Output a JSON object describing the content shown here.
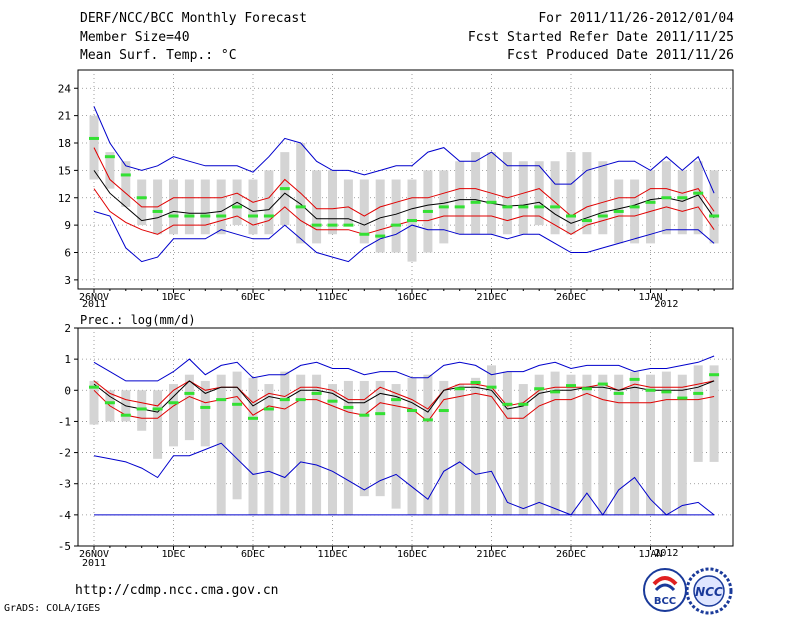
{
  "header": {
    "title": "DERF/NCC/BCC Monthly Forecast",
    "member_size": "Member Size=40",
    "variable": "Mean Surf. Temp.: °C",
    "period": "For 2011/11/26-2012/01/04",
    "started": "Fcst Started Refer Date 2011/11/25",
    "produced": "Fcst Produced Date 2011/11/26"
  },
  "footer": {
    "url": "http://cdmp.ncc.cma.gov.cn",
    "grads": "GrADS: COLA/IGES",
    "logo_bcc": "BCC",
    "logo_ncc": "NCC"
  },
  "colors": {
    "box": "#d4d4d4",
    "median": "#33e033",
    "mean": "#000000",
    "inner": "#e00000",
    "outer": "#0000cc",
    "grid": "#888888"
  },
  "chart_data": [
    {
      "type": "box",
      "title": "Mean Surf. Temp.: °C",
      "ylim": [
        2,
        26
      ],
      "yticks": [
        "3",
        "6",
        "9",
        "12",
        "15",
        "18",
        "21",
        "24"
      ],
      "xticks": [
        "26NOV",
        "1DEC",
        "6DEC",
        "11DEC",
        "16DEC",
        "21DEC",
        "26DEC",
        "1JAN"
      ],
      "year_labels": [
        "2011",
        "2012"
      ],
      "n_days": 40,
      "box_low": [
        14,
        13,
        11,
        9,
        8,
        8,
        8,
        8,
        8,
        9,
        8,
        8,
        9,
        7,
        7,
        8,
        9,
        7,
        6,
        6,
        5,
        6,
        7,
        8,
        8,
        8,
        8,
        8,
        9,
        8,
        8,
        8,
        8,
        7,
        7,
        7,
        8,
        8,
        8,
        7
      ],
      "box_high": [
        21,
        17,
        16,
        14,
        14,
        14,
        14,
        14,
        14,
        14,
        14,
        15,
        17,
        18,
        15,
        15,
        14,
        14,
        14,
        14,
        14,
        15,
        15,
        16,
        17,
        17,
        17,
        16,
        16,
        16,
        17,
        17,
        16,
        14,
        14,
        15,
        16,
        15,
        16,
        15
      ],
      "median": [
        18.5,
        16.5,
        14.5,
        12,
        10.5,
        10,
        10,
        10,
        10,
        11,
        10,
        10,
        13,
        11,
        9,
        9,
        9,
        8,
        7.8,
        9,
        9.5,
        10.5,
        11,
        11,
        11.5,
        11.5,
        11,
        11,
        11,
        11,
        10,
        9.5,
        10,
        10.5,
        11,
        11.5,
        12,
        12,
        12.5,
        10
      ],
      "mean": [
        15,
        12.5,
        11,
        9.5,
        9.8,
        10.5,
        10.3,
        10.3,
        10.5,
        11.5,
        10.5,
        10.7,
        12.5,
        11.3,
        9.7,
        9.7,
        9.7,
        9,
        9.8,
        10.2,
        10.8,
        11.2,
        11.4,
        11.8,
        11.8,
        11.4,
        11.1,
        11.2,
        11.5,
        10.2,
        9.2,
        9.8,
        10.4,
        10.8,
        11.2,
        11.8,
        12,
        11.6,
        12.3,
        9.8
      ],
      "inner_low": [
        13,
        10.5,
        9.3,
        8.5,
        8,
        9,
        9,
        9,
        9.5,
        10,
        9,
        9.5,
        11,
        9.5,
        8.5,
        8.5,
        8.5,
        8,
        8.5,
        9,
        9.5,
        9.5,
        10,
        10,
        10,
        10,
        9.5,
        10,
        10,
        9,
        8,
        9,
        9.5,
        10,
        10,
        10.5,
        11,
        10.5,
        11,
        8.5
      ],
      "inner_high": [
        17.5,
        14,
        12.5,
        11,
        11,
        12,
        12,
        12,
        12,
        12.5,
        11.5,
        12,
        14,
        12.5,
        10.8,
        10.8,
        11,
        10,
        11,
        11.5,
        12,
        12,
        12.5,
        13,
        13,
        12.5,
        12,
        12.5,
        13,
        11.5,
        10,
        11,
        11.5,
        12,
        12,
        13,
        13,
        12.5,
        13,
        10.5
      ],
      "outer_low": [
        10.5,
        10,
        6.5,
        5,
        5.5,
        7.5,
        7.5,
        7.5,
        8.5,
        8,
        7.5,
        7.5,
        9,
        7.5,
        6,
        5.5,
        5,
        6.5,
        7.5,
        8,
        9,
        8.5,
        8.5,
        8,
        8,
        8,
        7.5,
        8,
        8,
        7,
        6,
        6,
        6.5,
        7,
        7.5,
        8,
        8.5,
        8.5,
        8.5,
        7
      ],
      "outer_high": [
        22,
        18,
        15.5,
        15,
        15.5,
        16.5,
        16,
        15.5,
        15.5,
        15.5,
        14.8,
        16.5,
        18.5,
        18,
        16,
        15,
        15,
        14.5,
        15,
        15.5,
        15.5,
        17,
        17.5,
        16,
        16,
        17,
        15.5,
        15.5,
        15.5,
        13.5,
        13.5,
        15,
        15.5,
        16,
        16,
        15,
        16.5,
        15,
        16.5,
        12.5
      ]
    },
    {
      "type": "box",
      "title": "Prec.: log(mm/d)",
      "ylim": [
        -5,
        2
      ],
      "yticks": [
        "-5",
        "-4",
        "-3",
        "-2",
        "-1",
        "0",
        "1",
        "2"
      ],
      "xticks": [
        "26NOV",
        "1DEC",
        "6DEC",
        "11DEC",
        "16DEC",
        "21DEC",
        "26DEC",
        "1JAN"
      ],
      "year_labels": [
        "2011",
        "2012"
      ],
      "n_days": 40,
      "box_low": [
        -1.1,
        -1,
        -1,
        -1.3,
        -2.2,
        -1.8,
        -1.6,
        -1.8,
        -4,
        -3.5,
        -4,
        -4,
        -4,
        -4,
        -4,
        -4,
        -4,
        -3.4,
        -3.4,
        -3.8,
        -4,
        -4,
        -4,
        -4,
        -4,
        -4,
        -4,
        -4,
        -4,
        -4,
        -4,
        -4,
        -4,
        -4,
        -4,
        -4,
        -4,
        -4,
        -2.3,
        -2.3
      ],
      "box_high": [
        0.3,
        0,
        0,
        0,
        0,
        0.2,
        0.5,
        0.3,
        0.5,
        0.6,
        0.4,
        0.2,
        0.6,
        0.5,
        0.5,
        0.2,
        0.3,
        0.3,
        0.3,
        0.2,
        0.4,
        0.5,
        0.3,
        0.2,
        0.4,
        0.8,
        0.6,
        0.2,
        0.5,
        0.6,
        0.5,
        0.5,
        0.5,
        0.5,
        0.6,
        0.5,
        0.6,
        0.5,
        0.8,
        0.8
      ],
      "median": [
        0.1,
        -0.4,
        -0.8,
        -0.6,
        -0.6,
        -0.4,
        -0.1,
        -0.55,
        -0.3,
        -0.45,
        -0.9,
        -0.6,
        -0.3,
        -0.3,
        -0.1,
        -0.35,
        -0.55,
        -0.8,
        -0.75,
        -0.3,
        -0.65,
        -0.95,
        -0.65,
        0.05,
        0.25,
        0.1,
        -0.45,
        -0.45,
        0.05,
        -0.05,
        0.15,
        0.05,
        0.2,
        -0.1,
        0.35,
        0.0,
        -0.05,
        -0.25,
        -0.1,
        0.5
      ],
      "mean": [
        0.2,
        -0.2,
        -0.5,
        -0.6,
        -0.7,
        -0.2,
        0.3,
        -0.1,
        0.1,
        0.1,
        -0.5,
        -0.2,
        -0.3,
        0.0,
        0.0,
        -0.1,
        -0.4,
        -0.4,
        -0.1,
        -0.2,
        -0.4,
        -0.7,
        0.0,
        0.1,
        0.1,
        0.0,
        -0.6,
        -0.5,
        -0.1,
        0.0,
        0.0,
        0.1,
        0.1,
        0.0,
        0.1,
        0.0,
        0.0,
        0.0,
        0.1,
        0.3
      ],
      "inner_low": [
        0.0,
        -0.5,
        -0.8,
        -0.9,
        -0.9,
        -0.5,
        -0.2,
        -0.4,
        -0.3,
        -0.2,
        -0.8,
        -0.5,
        -0.6,
        -0.3,
        -0.3,
        -0.5,
        -0.7,
        -0.8,
        -0.4,
        -0.5,
        -0.6,
        -1.0,
        -0.3,
        -0.2,
        -0.1,
        -0.2,
        -0.9,
        -0.9,
        -0.5,
        -0.3,
        -0.3,
        -0.1,
        -0.3,
        -0.4,
        -0.4,
        -0.4,
        -0.3,
        -0.3,
        -0.3,
        -0.2
      ],
      "inner_high": [
        0.3,
        -0.1,
        -0.3,
        -0.4,
        -0.5,
        0.0,
        0.3,
        0.0,
        0.1,
        0.1,
        -0.4,
        -0.1,
        -0.2,
        0.1,
        0.1,
        0.0,
        -0.3,
        -0.3,
        0.1,
        -0.1,
        -0.3,
        -0.6,
        0.0,
        0.2,
        0.2,
        0.1,
        -0.5,
        -0.4,
        0.0,
        0.1,
        0.1,
        0.1,
        0.2,
        0.0,
        0.2,
        0.1,
        0.1,
        0.1,
        0.2,
        0.3
      ],
      "outer_low": [
        -2.1,
        -2.2,
        -2.3,
        -2.5,
        -2.8,
        -2.1,
        -2.1,
        -1.9,
        -1.7,
        -2.2,
        -2.7,
        -2.6,
        -2.8,
        -2.3,
        -2.4,
        -2.6,
        -2.9,
        -3.2,
        -2.9,
        -2.7,
        -3.1,
        -3.5,
        -2.6,
        -2.3,
        -2.7,
        -2.6,
        -3.6,
        -3.8,
        -3.6,
        -3.8,
        -4.0,
        -3.3,
        -4.0,
        -3.2,
        -2.8,
        -3.5,
        -4.0,
        -3.7,
        -3.6,
        -4.0
      ],
      "outer_high": [
        0.9,
        0.6,
        0.3,
        0.3,
        0.3,
        0.6,
        1.0,
        0.5,
        0.8,
        0.9,
        0.4,
        0.5,
        0.5,
        0.8,
        0.9,
        0.7,
        0.7,
        0.5,
        0.6,
        0.6,
        0.4,
        0.4,
        0.8,
        0.9,
        0.8,
        0.5,
        0.6,
        0.6,
        0.8,
        0.9,
        0.7,
        0.8,
        0.8,
        0.8,
        0.6,
        0.7,
        0.7,
        0.8,
        0.9,
        1.1
      ],
      "floor": -4
    }
  ]
}
